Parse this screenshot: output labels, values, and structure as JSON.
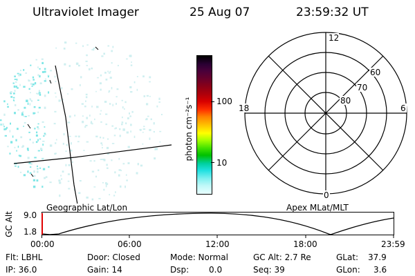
{
  "header": {
    "instrument": "Ultraviolet Imager",
    "date": "25 Aug 07",
    "time": "23:59:32 UT"
  },
  "colorbar": {
    "unit_label": "photon cm⁻²s⁻¹",
    "ticks": [
      "100",
      "10"
    ],
    "colors": [
      "#000000",
      "#2a0033",
      "#4a003a",
      "#6a002a",
      "#8a0018",
      "#b0000a",
      "#d80000",
      "#ff3000",
      "#ff8000",
      "#ffc000",
      "#ffff00",
      "#a8ff00",
      "#40e000",
      "#00c000",
      "#00d0a0",
      "#20e0e0",
      "#80f0f0",
      "#c0f8f8",
      "#e8ffff"
    ]
  },
  "polar_plot": {
    "mlt_labels": {
      "top": "12",
      "bottom": "0",
      "left": "18",
      "right": "6"
    },
    "lat_labels": [
      "80",
      "70",
      "60"
    ]
  },
  "altitude_strip": {
    "left_title": "Geographic Lat/Lon",
    "right_title": "Apex MLat/MLT",
    "y_axis_label": "GC Alt",
    "y_ticks": [
      "9.0",
      "1.8"
    ],
    "x_ticks": [
      "00:00",
      "06:00",
      "12:00",
      "18:00",
      "23:59"
    ]
  },
  "info": {
    "flt": "Flt: LBHL",
    "ip": "IP: 36.0",
    "door": "Door: Closed",
    "gain": "Gain: 14",
    "mode": "Mode: Normal",
    "dsp_label": "Dsp:",
    "dsp_value": "0.0",
    "gc_alt": "GC Alt: 2.7 Re",
    "seq": "Seq: 39",
    "glat_label": "GLat:",
    "glat_value": "37.9",
    "glon_label": "GLon:",
    "glon_value": "3.6"
  },
  "colors": {
    "speckle": "#7fe6e6",
    "speckle_light": "#cfeff0",
    "strip_marker": "#e00000"
  }
}
